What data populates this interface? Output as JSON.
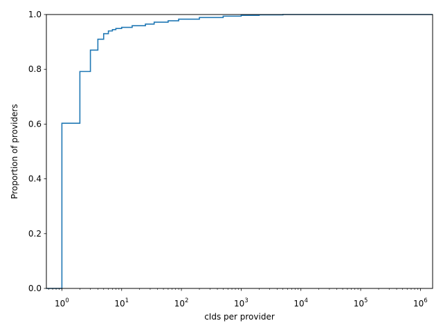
{
  "chart_data": {
    "type": "line",
    "subtype": "ecdf-step",
    "title": "",
    "xlabel": "cIds per provider",
    "ylabel": "Proportion of providers",
    "xscale": "log",
    "xlim": [
      0.55,
      1600000
    ],
    "ylim": [
      0,
      1.0
    ],
    "grid": false,
    "legend": "none",
    "color": "#1f77b4",
    "x_ticks": [
      {
        "value": 1,
        "base": "10",
        "exp": "0"
      },
      {
        "value": 10,
        "base": "10",
        "exp": "1"
      },
      {
        "value": 100,
        "base": "10",
        "exp": "2"
      },
      {
        "value": 1000,
        "base": "10",
        "exp": "3"
      },
      {
        "value": 10000,
        "base": "10",
        "exp": "4"
      },
      {
        "value": 100000,
        "base": "10",
        "exp": "5"
      },
      {
        "value": 1000000,
        "base": "10",
        "exp": "6"
      }
    ],
    "y_ticks": [
      {
        "value": 0.0,
        "label": "0.0"
      },
      {
        "value": 0.2,
        "label": "0.2"
      },
      {
        "value": 0.4,
        "label": "0.4"
      },
      {
        "value": 0.6,
        "label": "0.6"
      },
      {
        "value": 0.8,
        "label": "0.8"
      },
      {
        "value": 1.0,
        "label": "1.0"
      }
    ],
    "series": [
      {
        "x": [
          1,
          2,
          3,
          4,
          5,
          6,
          7,
          8,
          10,
          15,
          25,
          35,
          60,
          90,
          200,
          500,
          1000,
          2000,
          5000,
          1600000
        ],
        "y": [
          0.603,
          0.792,
          0.87,
          0.91,
          0.93,
          0.94,
          0.945,
          0.949,
          0.953,
          0.959,
          0.965,
          0.972,
          0.977,
          0.983,
          0.989,
          0.994,
          0.997,
          0.999,
          1.0,
          1.0
        ]
      }
    ]
  }
}
